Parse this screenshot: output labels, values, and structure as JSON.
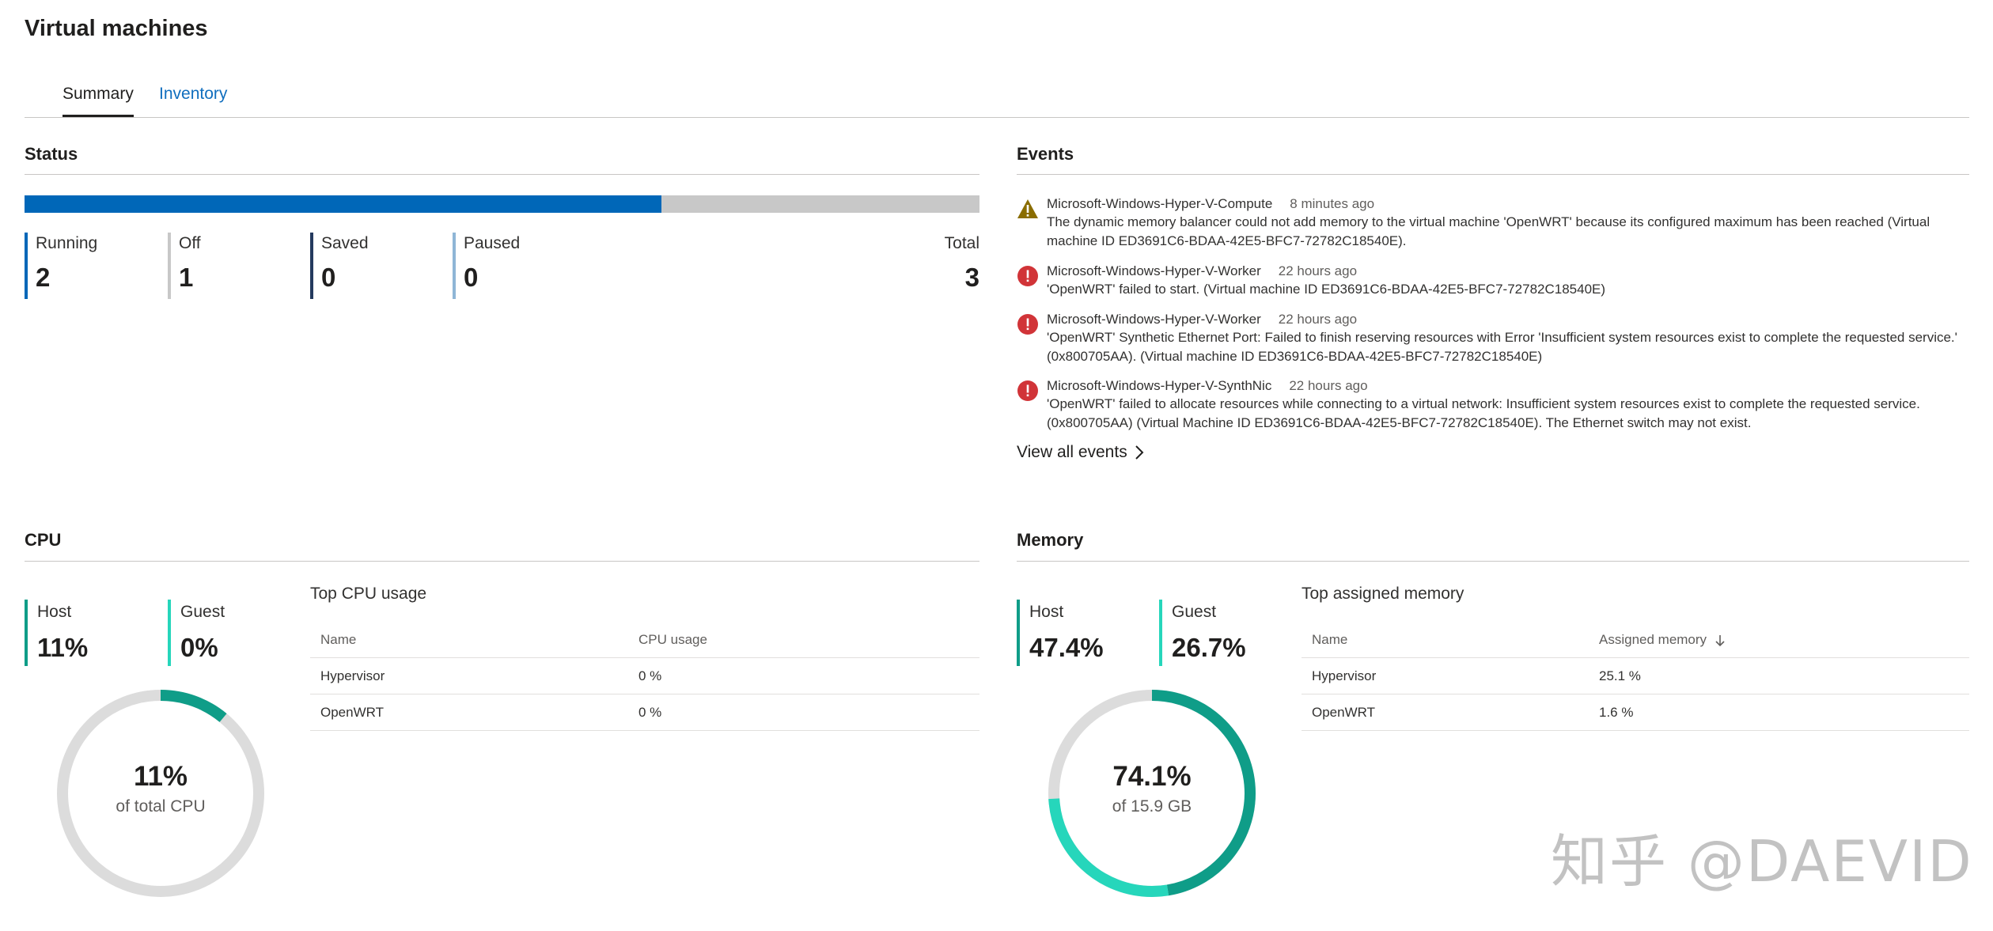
{
  "page": {
    "title": "Virtual machines"
  },
  "tabs": [
    {
      "label": "Summary",
      "active": true
    },
    {
      "label": "Inventory",
      "active": false
    }
  ],
  "status": {
    "title": "Status",
    "bar_fraction": 0.6667,
    "bar_color": "#0067b8",
    "bar_track_color": "#c8c8c8",
    "items": [
      {
        "label": "Running",
        "value": "2",
        "color": "#0067b8"
      },
      {
        "label": "Off",
        "value": "1",
        "color": "#c8c8c8"
      },
      {
        "label": "Saved",
        "value": "0",
        "color": "#243a5e"
      },
      {
        "label": "Paused",
        "value": "0",
        "color": "#8fb6d6"
      }
    ],
    "total": {
      "label": "Total",
      "value": "3"
    }
  },
  "events": {
    "title": "Events",
    "items": [
      {
        "severity": "warning",
        "icon": "warning-icon",
        "source": "Microsoft-Windows-Hyper-V-Compute",
        "time": "8 minutes ago",
        "message": "The dynamic memory balancer could not add memory to the virtual machine 'OpenWRT' because its configured maximum has been reached (Virtual machine ID ED3691C6-BDAA-42E5-BFC7-72782C18540E)."
      },
      {
        "severity": "error",
        "icon": "error-icon",
        "source": "Microsoft-Windows-Hyper-V-Worker",
        "time": "22 hours ago",
        "message": "'OpenWRT' failed to start. (Virtual machine ID ED3691C6-BDAA-42E5-BFC7-72782C18540E)"
      },
      {
        "severity": "error",
        "icon": "error-icon",
        "source": "Microsoft-Windows-Hyper-V-Worker",
        "time": "22 hours ago",
        "message": "'OpenWRT' Synthetic Ethernet Port: Failed to finish reserving resources with Error 'Insufficient system resources exist to complete the requested service.' (0x800705AA). (Virtual machine ID ED3691C6-BDAA-42E5-BFC7-72782C18540E)"
      },
      {
        "severity": "error",
        "icon": "error-icon",
        "source": "Microsoft-Windows-Hyper-V-SynthNic",
        "time": "22 hours ago",
        "message": "'OpenWRT' failed to allocate resources while connecting to a virtual network: Insufficient system resources exist to complete the requested service. (0x800705AA) (Virtual Machine ID ED3691C6-BDAA-42E5-BFC7-72782C18540E). The Ethernet switch may not exist."
      }
    ],
    "view_all": "View all events"
  },
  "cpu": {
    "title": "CPU",
    "host": {
      "label": "Host",
      "value": "11%"
    },
    "guest": {
      "label": "Guest",
      "value": "0%"
    },
    "donut": {
      "pct_label": "11%",
      "sub": "of total CPU",
      "host_fraction": 0.11,
      "guest_fraction": 0.0
    },
    "table": {
      "title": "Top CPU usage",
      "columns": [
        "Name",
        "CPU usage"
      ],
      "rows": [
        [
          "Hypervisor",
          "0 %"
        ],
        [
          "OpenWRT",
          "0 %"
        ]
      ]
    }
  },
  "memory": {
    "title": "Memory",
    "host": {
      "label": "Host",
      "value": "47.4%"
    },
    "guest": {
      "label": "Guest",
      "value": "26.7%"
    },
    "donut": {
      "pct_label": "74.1%",
      "sub": "of 15.9 GB",
      "host_fraction": 0.474,
      "guest_fraction": 0.267
    },
    "table": {
      "title": "Top assigned memory",
      "columns": [
        "Name",
        "Assigned memory"
      ],
      "sort_icon": "arrow-down-icon",
      "rows": [
        [
          "Hypervisor",
          "25.1 %"
        ],
        [
          "OpenWRT",
          "1.6 %"
        ]
      ]
    }
  },
  "colors": {
    "host": "#0f9d88",
    "guest": "#26d6bb",
    "track": "#dcdcdc",
    "warning": "#8a6d00",
    "error": "#d13438"
  },
  "watermark": "知乎 @DAEVID"
}
